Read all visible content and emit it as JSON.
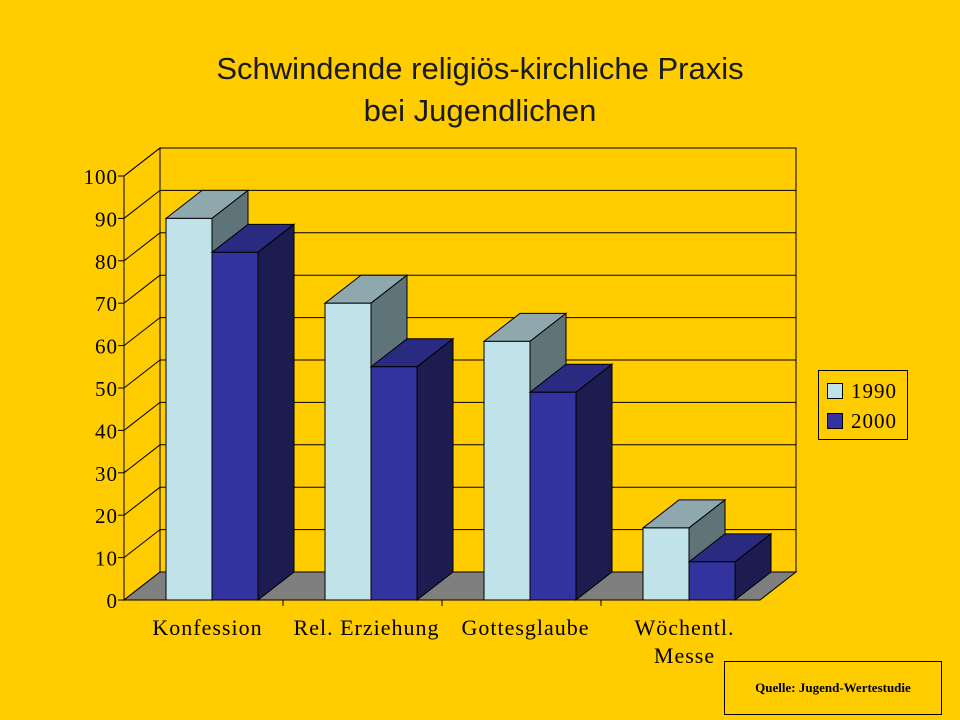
{
  "title_line1": "Schwindende religiös-kirchliche Praxis",
  "title_line2": "bei Jugendlichen",
  "source": "Quelle: Jugend-Wertestudie",
  "colors": {
    "background": "#ffcc00",
    "series_1990_front": "#bfe3e8",
    "series_1990_side": "#5f7478",
    "series_1990_top": "#8ea8ad",
    "series_2000_front": "#3333a0",
    "series_2000_side": "#1c1c50",
    "series_2000_top": "#2a2a80",
    "floor": "#7f7f7f"
  },
  "chart_data": {
    "type": "bar",
    "title": "Schwindende religiös-kirchliche Praxis bei Jugendlichen",
    "categories": [
      "Konfession",
      "Rel. Erziehung",
      "Gottesglaube",
      "Wöchentl. Messe"
    ],
    "category_lines": [
      [
        "Konfession"
      ],
      [
        "Rel. Erziehung"
      ],
      [
        "Gottesglaube"
      ],
      [
        "Wöchentl.",
        "Messe"
      ]
    ],
    "series": [
      {
        "name": "1990",
        "values": [
          90,
          70,
          61,
          17
        ]
      },
      {
        "name": "2000",
        "values": [
          82,
          55,
          49,
          9
        ]
      }
    ],
    "ylim": [
      0,
      100
    ],
    "yticks": [
      0,
      10,
      20,
      30,
      40,
      50,
      60,
      70,
      80,
      90,
      100
    ],
    "grid": true,
    "three_d": true,
    "legend_position": "right"
  }
}
